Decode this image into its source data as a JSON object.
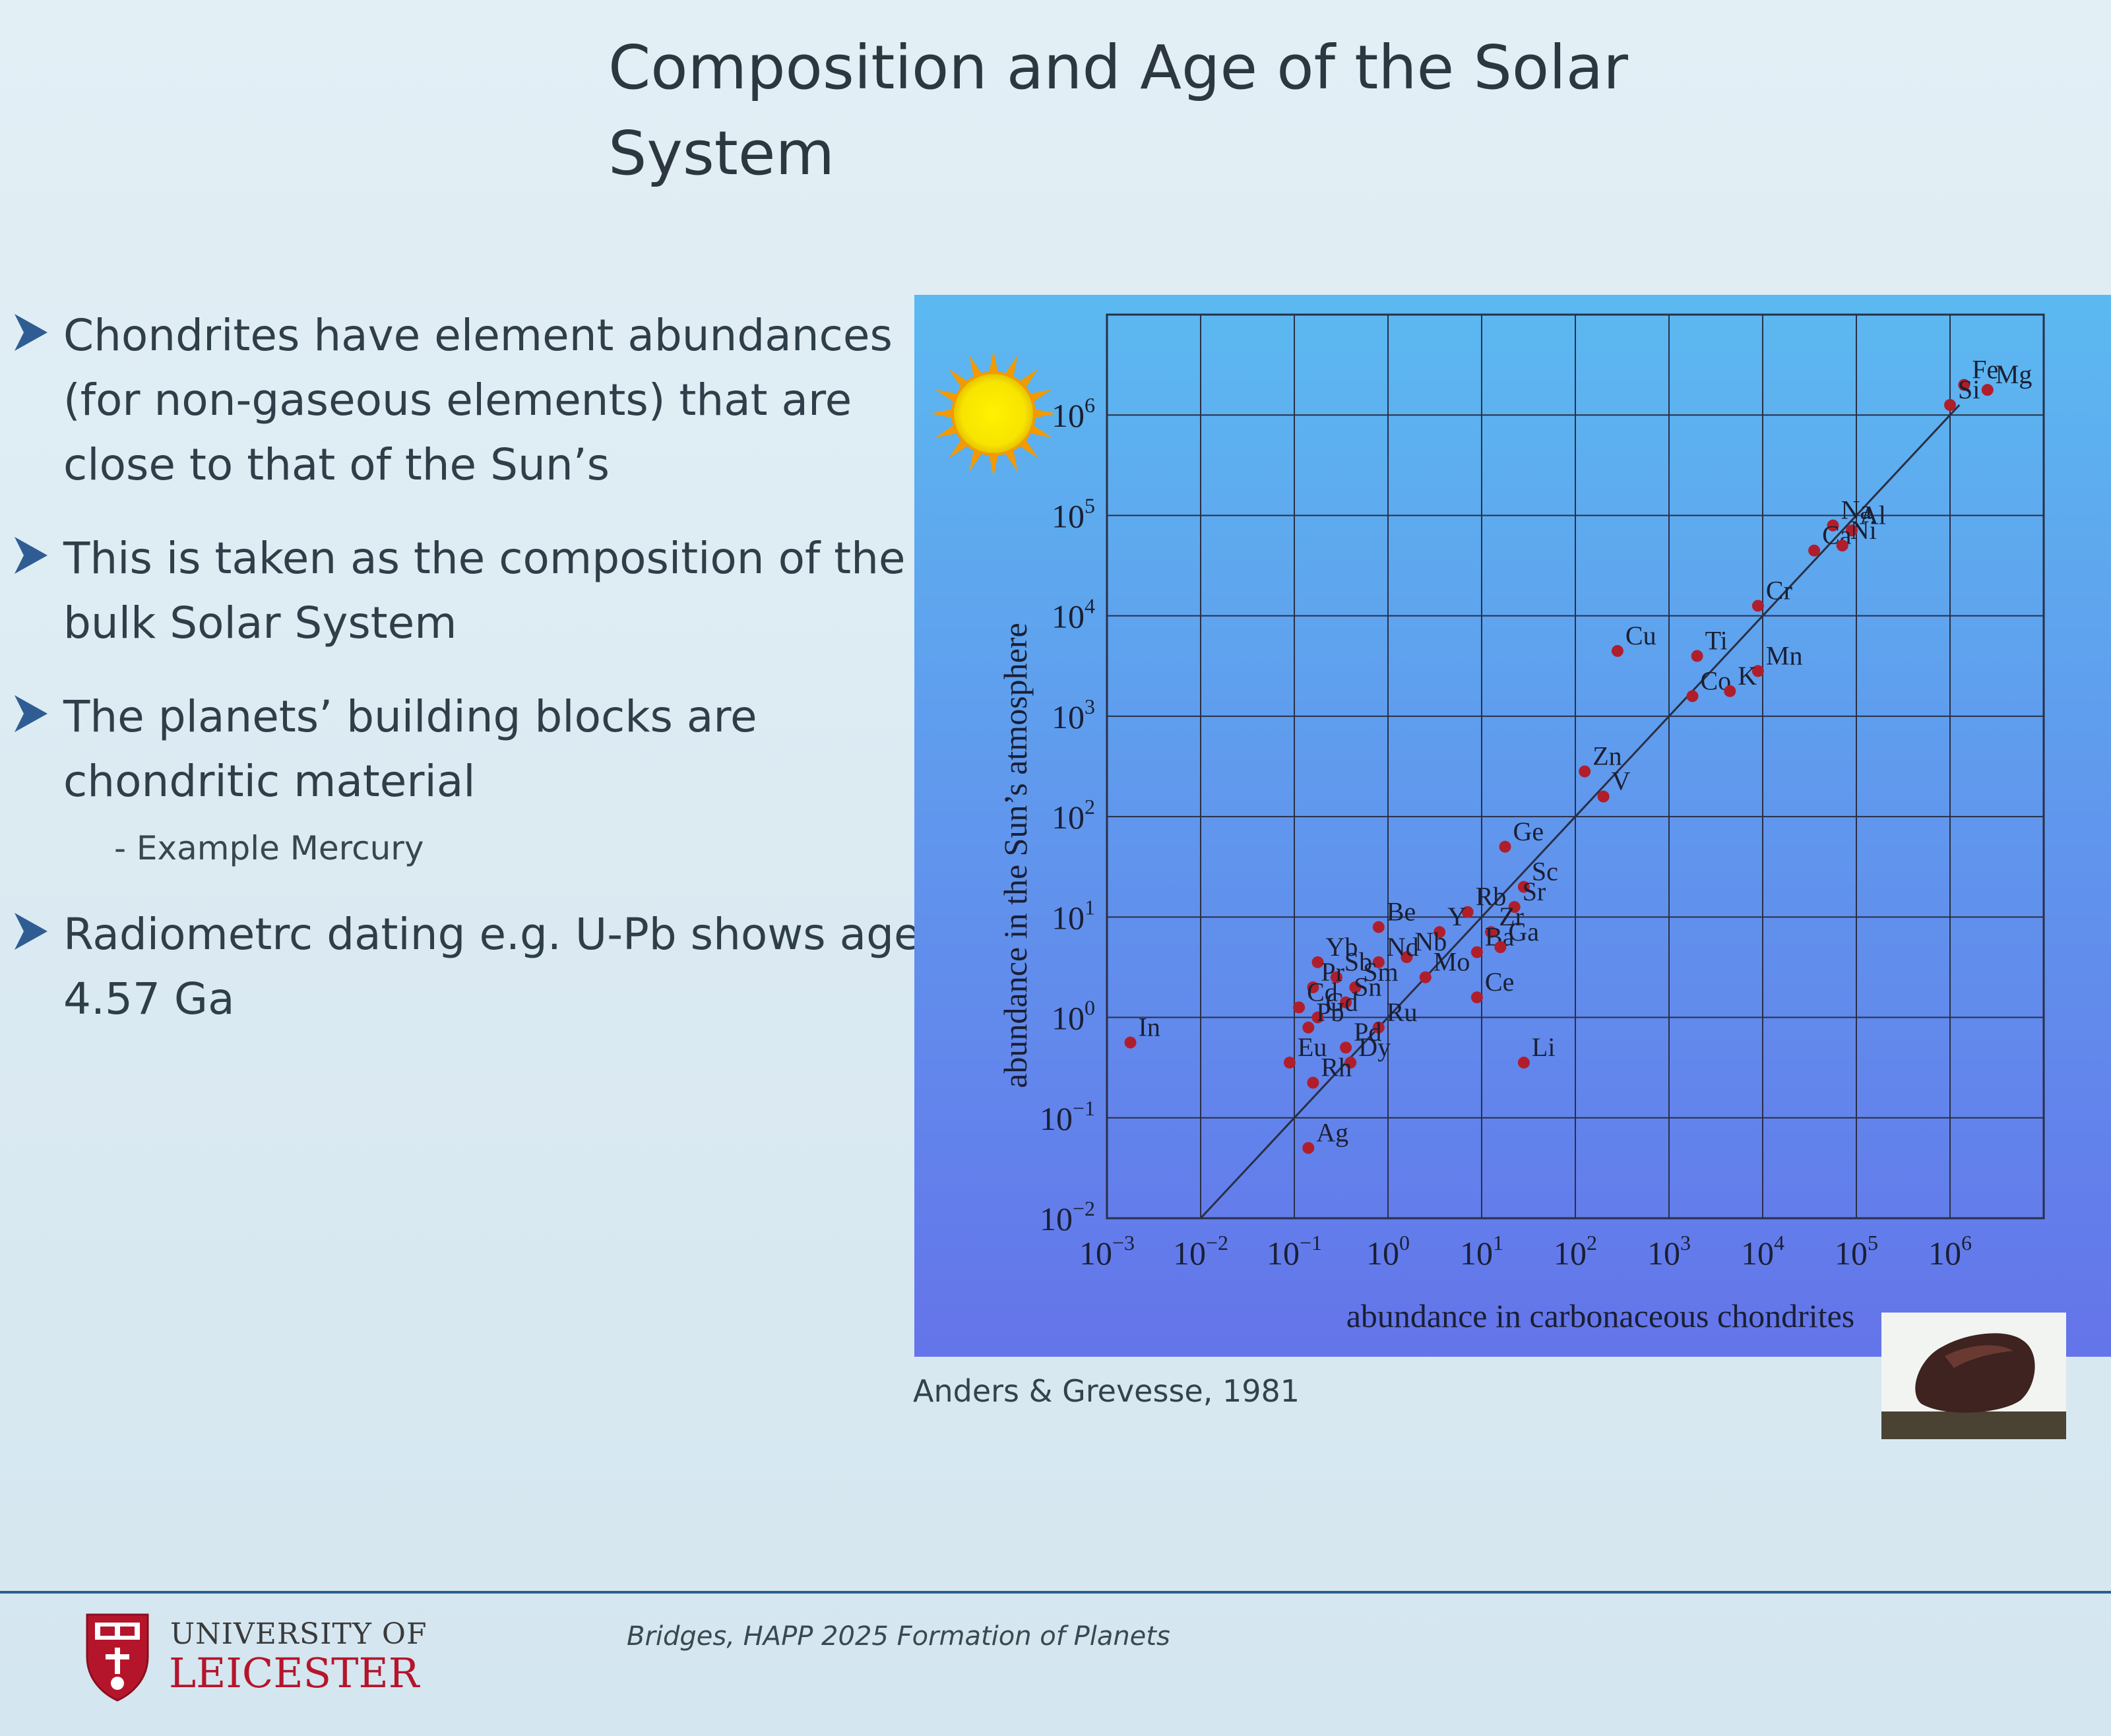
{
  "slide": {
    "title_line1": "Composition and Age of the Solar",
    "title_line2": "System"
  },
  "bullets": [
    {
      "text": "Chondrites have element abundances\n(for non-gaseous elements) that are\nclose to that of the Sun’s"
    },
    {
      "text": "This is taken as the composition of the\nbulk Solar System"
    },
    {
      "text": "The planets’ building blocks are\nchondritic material"
    },
    {
      "text": "Radiometrc dating e.g. U-Pb shows age\n4.57 Ga"
    }
  ],
  "sub_bullet": "- Example Mercury",
  "citation": "Anders & Grevesse, 1981",
  "footer": {
    "university_line1": "UNIVERSITY OF",
    "university_line2": "LEICESTER",
    "note": "Bridges, HAPP 2025 Formation of Planets"
  },
  "colors": {
    "arrow": "#2f5d93",
    "point": "#b01e2c",
    "panel_top": "#5cb9f0",
    "panel_bottom": "#6474ea",
    "sun": "#f7e400",
    "university_red": "#b5152b"
  },
  "chart_data": {
    "type": "scatter",
    "xlabel": "abundance in carbonaceous chondrites",
    "ylabel": "abundance in the Sun’s atmosphere",
    "x_scale": "log",
    "y_scale": "log",
    "xlim_exp": [
      -3,
      7
    ],
    "ylim_exp": [
      -2,
      7
    ],
    "x_ticks": [
      {
        "b": "10",
        "e": "−3"
      },
      {
        "b": "10",
        "e": "−2"
      },
      {
        "b": "10",
        "e": "−1"
      },
      {
        "b": "10",
        "e": "0"
      },
      {
        "b": "10",
        "e": "1"
      },
      {
        "b": "10",
        "e": "2"
      },
      {
        "b": "10",
        "e": "3"
      },
      {
        "b": "10",
        "e": "4"
      },
      {
        "b": "10",
        "e": "5"
      },
      {
        "b": "10",
        "e": "6"
      }
    ],
    "y_ticks": [
      {
        "b": "10",
        "e": "−2"
      },
      {
        "b": "10",
        "e": "−1"
      },
      {
        "b": "10",
        "e": "0"
      },
      {
        "b": "10",
        "e": "1"
      },
      {
        "b": "10",
        "e": "2"
      },
      {
        "b": "10",
        "e": "3"
      },
      {
        "b": "10",
        "e": "4"
      },
      {
        "b": "10",
        "e": "5"
      },
      {
        "b": "10",
        "e": "6"
      }
    ],
    "grid": true,
    "reference_line": "y = x",
    "points": [
      {
        "el": "Fe",
        "lx": 6.15,
        "ly": 6.3
      },
      {
        "el": "Mg",
        "lx": 6.4,
        "ly": 6.25
      },
      {
        "el": "Si",
        "lx": 6.0,
        "ly": 6.1
      },
      {
        "el": "Na",
        "lx": 4.75,
        "ly": 4.9
      },
      {
        "el": "Al",
        "lx": 4.95,
        "ly": 4.85
      },
      {
        "el": "Ca",
        "lx": 4.55,
        "ly": 4.65
      },
      {
        "el": "Ni",
        "lx": 4.85,
        "ly": 4.7
      },
      {
        "el": "Cr",
        "lx": 3.95,
        "ly": 4.1
      },
      {
        "el": "Cu",
        "lx": 2.45,
        "ly": 3.65
      },
      {
        "el": "Ti",
        "lx": 3.3,
        "ly": 3.6
      },
      {
        "el": "Mn",
        "lx": 3.95,
        "ly": 3.45
      },
      {
        "el": "Co",
        "lx": 3.25,
        "ly": 3.2
      },
      {
        "el": "K",
        "lx": 3.65,
        "ly": 3.25
      },
      {
        "el": "Zn",
        "lx": 2.1,
        "ly": 2.45
      },
      {
        "el": "V",
        "lx": 2.3,
        "ly": 2.2
      },
      {
        "el": "Ge",
        "lx": 1.25,
        "ly": 1.7
      },
      {
        "el": "Sc",
        "lx": 1.45,
        "ly": 1.3
      },
      {
        "el": "Rb",
        "lx": 0.85,
        "ly": 1.05
      },
      {
        "el": "Sr",
        "lx": 1.35,
        "ly": 1.1
      },
      {
        "el": "Y",
        "lx": 0.55,
        "ly": 0.85
      },
      {
        "el": "Zr",
        "lx": 1.1,
        "ly": 0.85
      },
      {
        "el": "Be",
        "lx": -0.1,
        "ly": 0.9
      },
      {
        "el": "Ba",
        "lx": 0.95,
        "ly": 0.65
      },
      {
        "el": "Ga",
        "lx": 1.2,
        "ly": 0.7
      },
      {
        "el": "Nb",
        "lx": 0.2,
        "ly": 0.6
      },
      {
        "el": "Mo",
        "lx": 0.4,
        "ly": 0.4
      },
      {
        "el": "Ce",
        "lx": 0.95,
        "ly": 0.2
      },
      {
        "el": "Yb",
        "lx": -0.75,
        "ly": 0.55
      },
      {
        "el": "Sb",
        "lx": -0.55,
        "ly": 0.4
      },
      {
        "el": "Nd",
        "lx": -0.1,
        "ly": 0.55
      },
      {
        "el": "Pr",
        "lx": -0.8,
        "ly": 0.3
      },
      {
        "el": "Sm",
        "lx": -0.35,
        "ly": 0.3
      },
      {
        "el": "Cd",
        "lx": -0.95,
        "ly": 0.1
      },
      {
        "el": "Sn",
        "lx": -0.45,
        "ly": 0.15
      },
      {
        "el": "Gd",
        "lx": -0.75,
        "ly": 0.0
      },
      {
        "el": "Pb",
        "lx": -0.85,
        "ly": -0.1
      },
      {
        "el": "Ru",
        "lx": -0.1,
        "ly": -0.1
      },
      {
        "el": "Pd",
        "lx": -0.45,
        "ly": -0.3
      },
      {
        "el": "Eu",
        "lx": -1.05,
        "ly": -0.45
      },
      {
        "el": "Dy",
        "lx": -0.4,
        "ly": -0.45
      },
      {
        "el": "Rh",
        "lx": -0.8,
        "ly": -0.65
      },
      {
        "el": "Li",
        "lx": 1.45,
        "ly": -0.45
      },
      {
        "el": "In",
        "lx": -2.75,
        "ly": -0.25
      },
      {
        "el": "Ag",
        "lx": -0.85,
        "ly": -1.3
      }
    ]
  }
}
